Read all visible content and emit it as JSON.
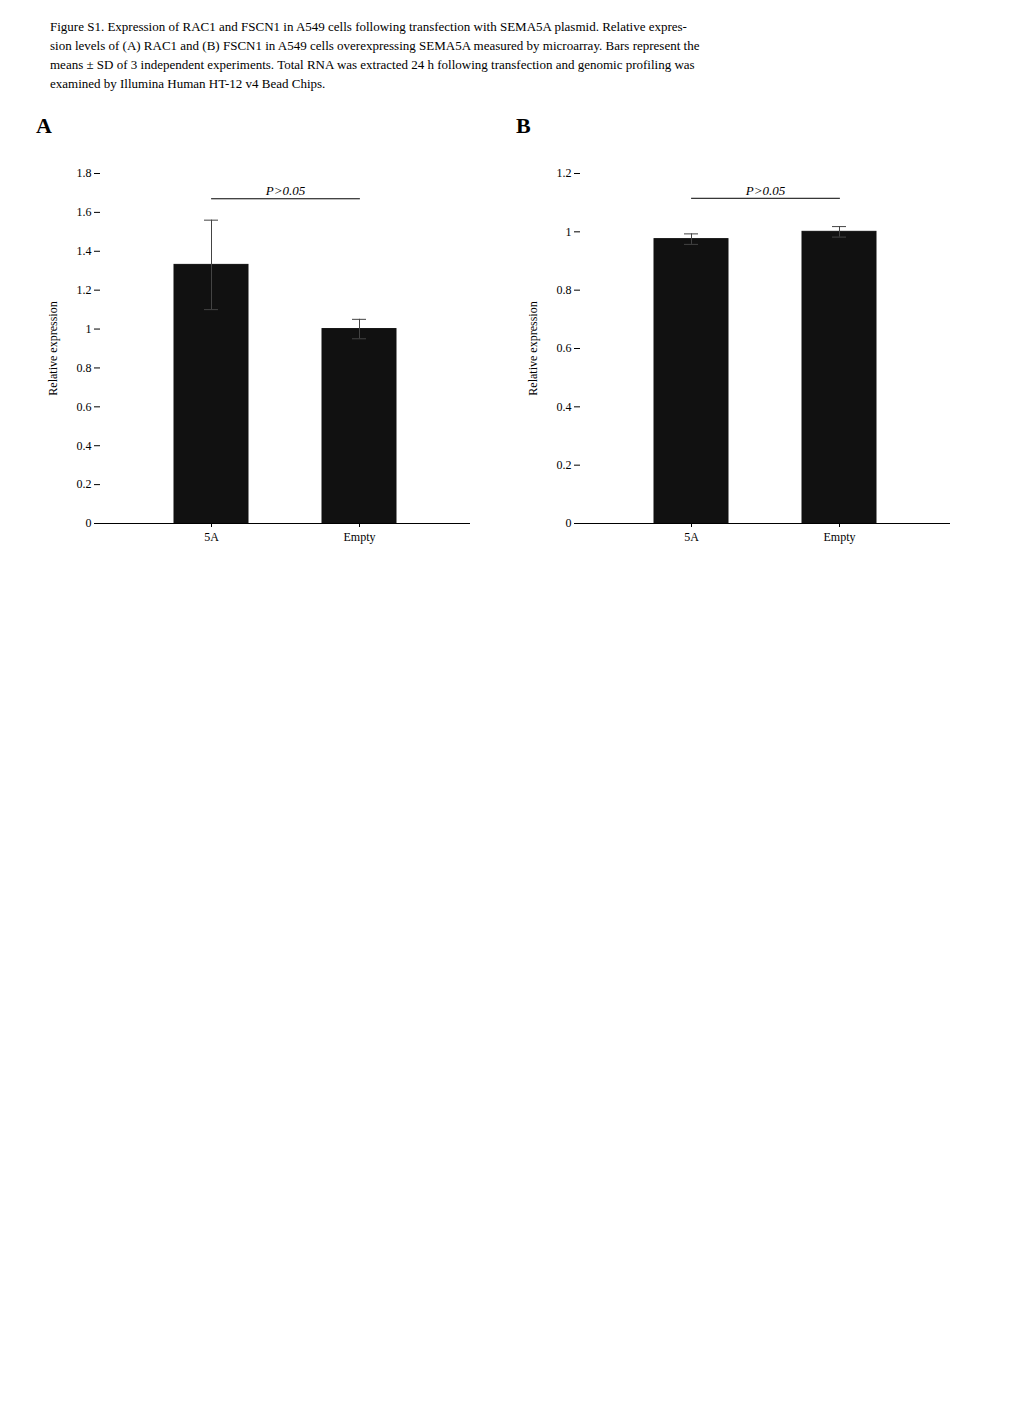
{
  "caption": [
    "Figure S1. Expression of RAC1 and FSCN1 in A549 cells following transfection with SEMA5A plasmid. Relative expres-",
    "sion levels of (A) RAC1 and (B) FSCN1 in A549 cells overexpressing SEMA5A measured by microarray. Bars represent the",
    "means ± SD of 3 independent experiments. Total RNA was extracted 24 h following transfection and genomic profiling was",
    "examined by Illumina Human HT-12 v4 Bead Chips."
  ],
  "chart_data": [
    {
      "type": "bar",
      "title": "A",
      "categories": [
        "5A",
        "Empty"
      ],
      "values": [
        1.33,
        1.0
      ],
      "errors": [
        0.23,
        0.05
      ],
      "color": "#111111",
      "ylabel": "Relative expression",
      "ylim": [
        0,
        1.8
      ],
      "yticks": [
        0,
        0.2,
        0.4,
        0.6,
        0.8,
        1,
        1.2,
        1.4,
        1.6,
        1.8
      ],
      "grid": false,
      "annotations": [
        {
          "text": "P>0.05",
          "y": 1.69,
          "line_y": 1.67
        }
      ]
    },
    {
      "type": "bar",
      "title": "B",
      "categories": [
        "5A",
        "Empty"
      ],
      "values": [
        0.975,
        1.0
      ],
      "errors": [
        0.018,
        0.018
      ],
      "color": "#111111",
      "ylabel": "Relative expression",
      "ylim": [
        0,
        1.2
      ],
      "yticks": [
        0,
        0.2,
        0.4,
        0.6,
        0.8,
        1,
        1.2
      ],
      "grid": false,
      "annotations": [
        {
          "text": "P>0.05",
          "y": 1.125,
          "line_y": 1.115
        }
      ]
    }
  ]
}
